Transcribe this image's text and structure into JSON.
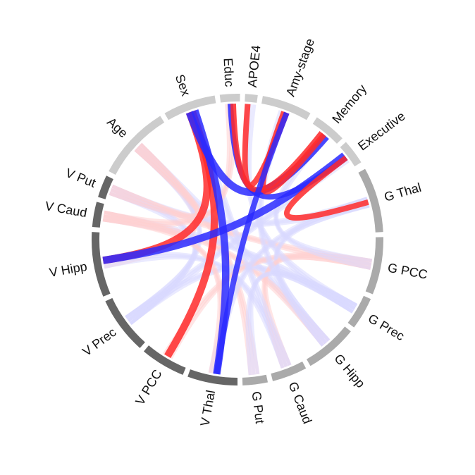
{
  "diagram": {
    "type": "chord",
    "colors": {
      "positive": "#ff2a2a",
      "negative": "#2a2aff",
      "faint_positive": "#ffd0d0",
      "faint_negative": "#d8d8ff",
      "covariate_arc": "#cccccc",
      "gray_matter_arc": "#aaaaaa",
      "volume_arc": "#666666"
    },
    "sectors": [
      {
        "id": "age",
        "label": "Age",
        "group": "covariate"
      },
      {
        "id": "sex",
        "label": "Sex",
        "group": "covariate"
      },
      {
        "id": "educ",
        "label": "Educ",
        "group": "covariate"
      },
      {
        "id": "apoe4",
        "label": "APOE4",
        "group": "covariate"
      },
      {
        "id": "amy",
        "label": "Amy-stage",
        "group": "covariate"
      },
      {
        "id": "memory",
        "label": "Memory",
        "group": "covariate"
      },
      {
        "id": "exec",
        "label": "Executive",
        "group": "covariate"
      },
      {
        "id": "gthal",
        "label": "G Thal",
        "group": "gray_matter"
      },
      {
        "id": "gpcc",
        "label": "G PCC",
        "group": "gray_matter"
      },
      {
        "id": "gprec",
        "label": "G Prec",
        "group": "gray_matter"
      },
      {
        "id": "ghipp",
        "label": "G Hipp",
        "group": "gray_matter"
      },
      {
        "id": "gcaud",
        "label": "G Caud",
        "group": "gray_matter"
      },
      {
        "id": "gput",
        "label": "G Put",
        "group": "gray_matter"
      },
      {
        "id": "vthal",
        "label": "V Thal",
        "group": "volume"
      },
      {
        "id": "vpcc",
        "label": "V PCC",
        "group": "volume"
      },
      {
        "id": "vprec",
        "label": "V Prec",
        "group": "volume"
      },
      {
        "id": "vhipp",
        "label": "V Hipp",
        "group": "volume"
      },
      {
        "id": "vcaud",
        "label": "V Caud",
        "group": "volume"
      },
      {
        "id": "vput",
        "label": "V Put",
        "group": "volume"
      }
    ],
    "strong_links": [
      {
        "from": "sex",
        "to": "vhipp",
        "sign": "positive",
        "weight": 3
      },
      {
        "from": "sex",
        "to": "vpcc",
        "sign": "positive",
        "weight": 3
      },
      {
        "from": "sex",
        "to": "vthal",
        "sign": "negative",
        "weight": 3
      },
      {
        "from": "sex",
        "to": "memory",
        "sign": "negative",
        "weight": 3
      },
      {
        "from": "educ",
        "to": "exec",
        "sign": "negative",
        "weight": 2
      },
      {
        "from": "educ",
        "to": "memory",
        "sign": "positive",
        "weight": 2
      },
      {
        "from": "apoe4",
        "to": "amy",
        "sign": "positive",
        "weight": 2
      },
      {
        "from": "amy",
        "to": "memory",
        "sign": "positive",
        "weight": 2
      },
      {
        "from": "amy",
        "to": "vthal",
        "sign": "negative",
        "weight": 2
      },
      {
        "from": "exec",
        "to": "vhipp",
        "sign": "negative",
        "weight": 3
      },
      {
        "from": "exec",
        "to": "gthal",
        "sign": "positive",
        "weight": 2
      }
    ],
    "faint_links": [
      {
        "from": "age",
        "to": "vhipp",
        "sign": "positive",
        "weight": 1
      },
      {
        "from": "age",
        "to": "vprec",
        "sign": "negative",
        "weight": 1
      },
      {
        "from": "age",
        "to": "ghipp",
        "sign": "negative",
        "weight": 1
      },
      {
        "from": "age",
        "to": "gput",
        "sign": "positive",
        "weight": 1
      },
      {
        "from": "vput",
        "to": "gthal",
        "sign": "negative",
        "weight": 1
      },
      {
        "from": "vput",
        "to": "gpcc",
        "sign": "positive",
        "weight": 1
      },
      {
        "from": "vcaud",
        "to": "gprec",
        "sign": "negative",
        "weight": 1
      },
      {
        "from": "vcaud",
        "to": "ghipp",
        "sign": "positive",
        "weight": 1
      },
      {
        "from": "vhipp",
        "to": "gcaud",
        "sign": "negative",
        "weight": 1
      },
      {
        "from": "vprec",
        "to": "gprec",
        "sign": "negative",
        "weight": 1
      },
      {
        "from": "vpcc",
        "to": "gpcc",
        "sign": "positive",
        "weight": 1
      },
      {
        "from": "vthal",
        "to": "gthal",
        "sign": "negative",
        "weight": 1
      },
      {
        "from": "gthal",
        "to": "ghipp",
        "sign": "negative",
        "weight": 1
      },
      {
        "from": "gpcc",
        "to": "gcaud",
        "sign": "positive",
        "weight": 1
      },
      {
        "from": "gprec",
        "to": "gput",
        "sign": "negative",
        "weight": 1
      },
      {
        "from": "vput",
        "to": "vprec",
        "sign": "negative",
        "weight": 1
      },
      {
        "from": "vcaud",
        "to": "vthal",
        "sign": "positive",
        "weight": 1
      },
      {
        "from": "apoe4",
        "to": "gprec",
        "sign": "negative",
        "weight": 1
      },
      {
        "from": "amy",
        "to": "ghipp",
        "sign": "negative",
        "weight": 1
      },
      {
        "from": "memory",
        "to": "gpcc",
        "sign": "negative",
        "weight": 1
      },
      {
        "from": "age",
        "to": "vput",
        "sign": "positive",
        "weight": 1
      },
      {
        "from": "sex",
        "to": "gcaud",
        "sign": "negative",
        "weight": 1
      },
      {
        "from": "educ",
        "to": "vcaud",
        "sign": "positive",
        "weight": 1
      },
      {
        "from": "exec",
        "to": "vprec",
        "sign": "negative",
        "weight": 1
      }
    ]
  }
}
